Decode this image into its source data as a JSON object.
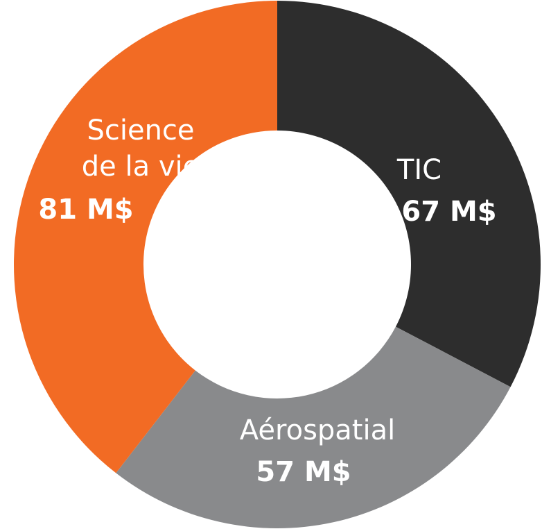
{
  "chart_data": {
    "type": "donut",
    "categories": [
      "TIC",
      "Aérospatial",
      "Science\nde la vie"
    ],
    "values": [
      67,
      57,
      81
    ],
    "value_labels": [
      "67 M$",
      "57 M$",
      "81 M$"
    ],
    "colors": [
      "#2d2d2d",
      "#898a8c",
      "#f26b24"
    ]
  }
}
